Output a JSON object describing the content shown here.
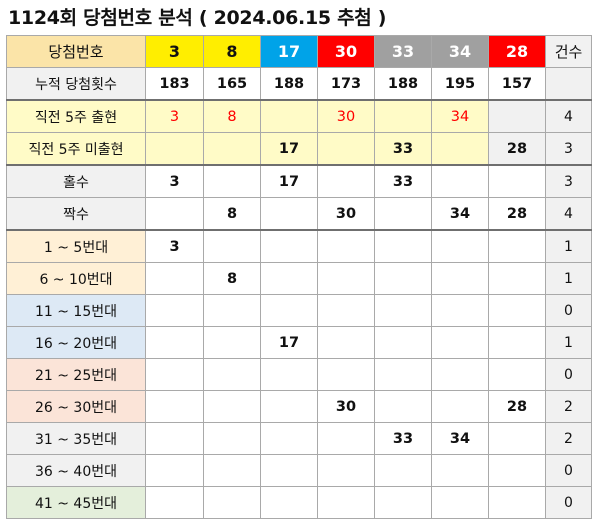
{
  "title": "1124회 당첨번호 분석 ( 2024.06.15 추첨 )",
  "header": {
    "label": "당첨번호",
    "count_label": "건수",
    "numbers": [
      {
        "value": "3",
        "bg": "#ffee00",
        "fg": "#111111"
      },
      {
        "value": "8",
        "bg": "#ffee00",
        "fg": "#111111"
      },
      {
        "value": "17",
        "bg": "#00a3e8",
        "fg": "#ffffff"
      },
      {
        "value": "30",
        "bg": "#ff0000",
        "fg": "#ffffff"
      },
      {
        "value": "33",
        "bg": "#a0a0a0",
        "fg": "#ffffff"
      },
      {
        "value": "34",
        "bg": "#a0a0a0",
        "fg": "#ffffff"
      },
      {
        "value": "28",
        "bg": "#ff0000",
        "fg": "#ffffff"
      }
    ]
  },
  "cumulative": {
    "label": "누적 당첨횟수",
    "values": [
      "183",
      "165",
      "188",
      "173",
      "188",
      "195",
      "157"
    ],
    "count": ""
  },
  "appeared_last5": {
    "label": "직전 5주 출현",
    "values": [
      "3",
      "8",
      "",
      "30",
      "",
      "34",
      ""
    ],
    "count": "4"
  },
  "not_appeared_last5": {
    "label": "직전 5주 미출현",
    "values": [
      "",
      "",
      "17",
      "",
      "33",
      "",
      "28"
    ],
    "count": "3"
  },
  "odd": {
    "label": "홀수",
    "values": [
      "3",
      "",
      "17",
      "",
      "33",
      "",
      ""
    ],
    "count": "3"
  },
  "even": {
    "label": "짝수",
    "values": [
      "",
      "8",
      "",
      "30",
      "",
      "34",
      "28"
    ],
    "count": "4"
  },
  "ranges": [
    {
      "label": "1 ~ 5번대",
      "values": [
        "3",
        "",
        "",
        "",
        "",
        "",
        ""
      ],
      "count": "1"
    },
    {
      "label": "6 ~ 10번대",
      "values": [
        "",
        "8",
        "",
        "",
        "",
        "",
        ""
      ],
      "count": "1"
    },
    {
      "label": "11 ~ 15번대",
      "values": [
        "",
        "",
        "",
        "",
        "",
        "",
        ""
      ],
      "count": "0"
    },
    {
      "label": "16 ~ 20번대",
      "values": [
        "",
        "",
        "17",
        "",
        "",
        "",
        ""
      ],
      "count": "1"
    },
    {
      "label": "21 ~ 25번대",
      "values": [
        "",
        "",
        "",
        "",
        "",
        "",
        ""
      ],
      "count": "0"
    },
    {
      "label": "26 ~ 30번대",
      "values": [
        "",
        "",
        "",
        "30",
        "",
        "",
        "28"
      ],
      "count": "2"
    },
    {
      "label": "31 ~ 35번대",
      "values": [
        "",
        "",
        "",
        "",
        "33",
        "34",
        ""
      ],
      "count": "2"
    },
    {
      "label": "36 ~ 40번대",
      "values": [
        "",
        "",
        "",
        "",
        "",
        "",
        ""
      ],
      "count": "0"
    },
    {
      "label": "41 ~ 45번대",
      "values": [
        "",
        "",
        "",
        "",
        "",
        "",
        ""
      ],
      "count": "0"
    }
  ],
  "colors": {
    "label_header": "#fbe4a8",
    "last5_bg": "#fffbc7",
    "gray_bg": "#f1f1f1",
    "range_orange": "#fff0d6",
    "range_blue": "#dde9f5",
    "range_salmon": "#fbe4d8",
    "range_green": "#e4efdb",
    "highlight_text": "#ff0000"
  }
}
